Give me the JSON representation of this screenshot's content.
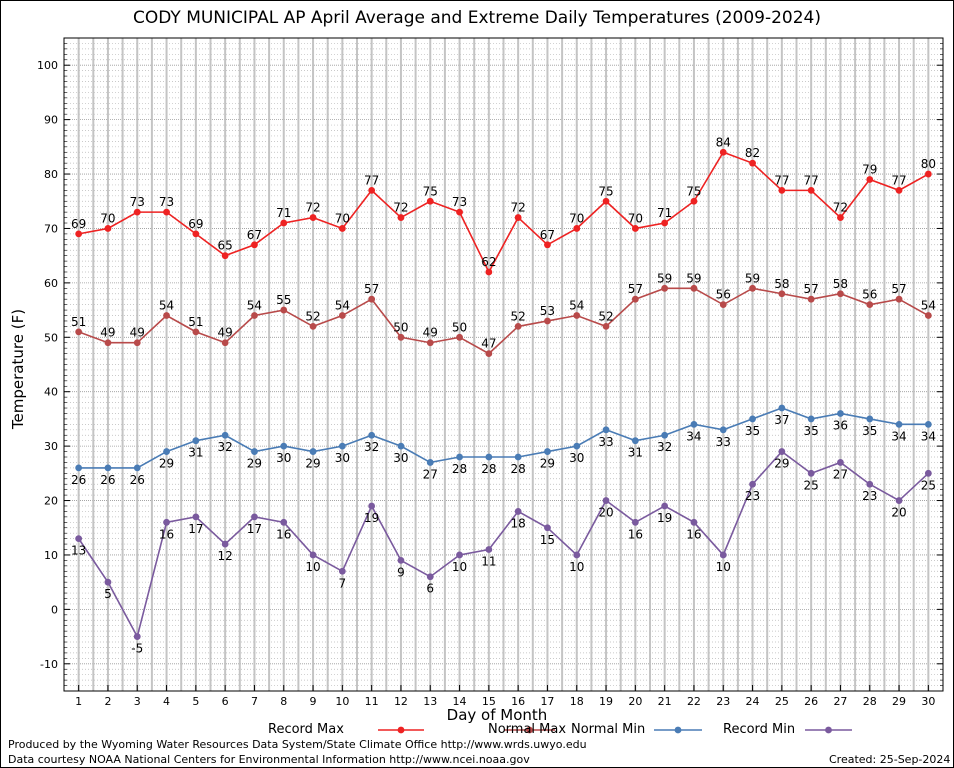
{
  "chart_data": {
    "type": "line",
    "title": "CODY MUNICIPAL AP April Average and Extreme Daily Temperatures (2009-2024)",
    "xlabel": "Day of Month",
    "ylabel": "Temperature (F)",
    "x": [
      1,
      2,
      3,
      4,
      5,
      6,
      7,
      8,
      9,
      10,
      11,
      12,
      13,
      14,
      15,
      16,
      17,
      18,
      19,
      20,
      21,
      22,
      23,
      24,
      25,
      26,
      27,
      28,
      29,
      30
    ],
    "xlim": [
      0.5,
      30.5
    ],
    "ylim": [
      -15,
      105
    ],
    "yticks": [
      -10,
      0,
      10,
      20,
      30,
      40,
      50,
      60,
      70,
      80,
      90,
      100
    ],
    "grid": true,
    "legend_position": "bottom",
    "series": [
      {
        "name": "Record Max",
        "color": "#ee2222",
        "label_position": "above",
        "values": [
          69,
          70,
          73,
          73,
          69,
          65,
          67,
          71,
          72,
          70,
          77,
          72,
          75,
          73,
          62,
          72,
          67,
          70,
          75,
          70,
          71,
          75,
          84,
          82,
          77,
          77,
          72,
          79,
          77,
          80
        ]
      },
      {
        "name": "Normal Max",
        "color": "#b84a4a",
        "label_position": "above",
        "values": [
          51,
          49,
          49,
          54,
          51,
          49,
          54,
          55,
          52,
          54,
          57,
          50,
          49,
          50,
          47,
          52,
          53,
          54,
          52,
          57,
          59,
          59,
          56,
          59,
          58,
          57,
          58,
          56,
          57,
          54
        ]
      },
      {
        "name": "Normal Min",
        "color": "#4a7cb5",
        "label_position": "below",
        "values": [
          26,
          26,
          26,
          29,
          31,
          32,
          29,
          30,
          29,
          30,
          32,
          30,
          27,
          28,
          28,
          28,
          29,
          30,
          33,
          31,
          32,
          34,
          33,
          35,
          37,
          35,
          36,
          35,
          34,
          34
        ]
      },
      {
        "name": "Record Min",
        "color": "#7a5a9e",
        "label_position": "below",
        "values": [
          13,
          5,
          -5,
          16,
          17,
          12,
          17,
          16,
          10,
          7,
          19,
          9,
          6,
          10,
          11,
          18,
          15,
          10,
          20,
          16,
          19,
          16,
          10,
          23,
          29,
          25,
          27,
          23,
          20,
          25
        ]
      }
    ]
  },
  "footer": {
    "produced_by": "Produced by the Wyoming Water Resources Data System/State Climate Office http://www.wrds.uwyo.edu",
    "data_courtesy": "Data courtesy NOAA National Centers for Environmental Information http://www.ncei.noaa.gov",
    "created": "Created:  25-Sep-2024"
  }
}
